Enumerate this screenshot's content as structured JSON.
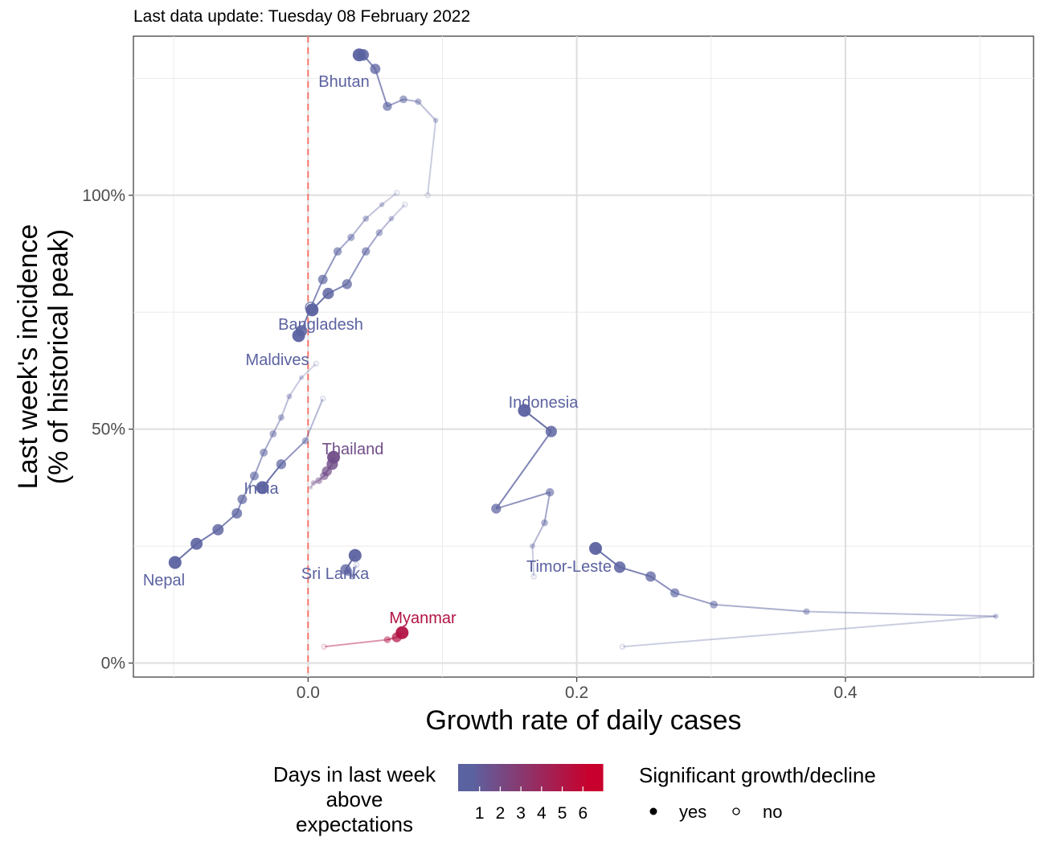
{
  "subtitle": "Last data update: Tuesday 08 February 2022",
  "chart_data": {
    "type": "scatter",
    "title": "",
    "xlabel": "Growth rate of daily cases",
    "ylabel": "Last week's incidence\n(% of historical peak)",
    "xlim": [
      -0.13,
      0.54
    ],
    "ylim": [
      -3,
      134
    ],
    "x_ticks": [
      0.0,
      0.2,
      0.4
    ],
    "x_tick_labels": [
      "0.0",
      "0.2",
      "0.4"
    ],
    "y_ticks": [
      0,
      50,
      100
    ],
    "y_tick_labels": [
      "0%",
      "50%",
      "100%"
    ],
    "reference_line": {
      "x": 0,
      "color": "#f8766d",
      "style": "dashed"
    },
    "colors": {
      "low": "#5b62a0",
      "high": "#c8002d"
    },
    "series": [
      {
        "name": "Bhutan",
        "days_above": 1,
        "points": [
          [
            0.089,
            100
          ],
          [
            0.095,
            116
          ],
          [
            0.082,
            120
          ],
          [
            0.071,
            120.5
          ],
          [
            0.059,
            119
          ],
          [
            0.05,
            127
          ],
          [
            0.041,
            130
          ],
          [
            0.038,
            130
          ]
        ],
        "significant": [
          false,
          true,
          true,
          true,
          true,
          true,
          true,
          true
        ],
        "label": "Bhutan"
      },
      {
        "name": "Bangladesh",
        "days_above": 1,
        "points": [
          [
            0.072,
            98
          ],
          [
            0.062,
            95
          ],
          [
            0.053,
            92
          ],
          [
            0.043,
            88
          ],
          [
            0.029,
            81
          ],
          [
            0.015,
            79
          ],
          [
            0.003,
            75.5
          ]
        ],
        "significant": [
          false,
          true,
          true,
          true,
          true,
          true,
          true
        ],
        "label": "Bangladesh"
      },
      {
        "name": "Maldives",
        "days_above": 1,
        "points": [
          [
            0.066,
            100.5
          ],
          [
            0.055,
            98
          ],
          [
            0.043,
            95
          ],
          [
            0.032,
            91
          ],
          [
            0.022,
            88
          ],
          [
            0.011,
            82
          ],
          [
            0.002,
            76
          ],
          [
            -0.005,
            71
          ],
          [
            -0.007,
            70
          ]
        ],
        "significant": [
          false,
          true,
          true,
          true,
          true,
          true,
          false,
          true,
          true
        ],
        "label": "Maldives"
      },
      {
        "name": "India",
        "days_above": 1,
        "points": [
          [
            0.006,
            64
          ],
          [
            -0.005,
            61
          ],
          [
            -0.014,
            57
          ],
          [
            -0.02,
            52.5
          ],
          [
            -0.026,
            49
          ],
          [
            -0.033,
            45
          ],
          [
            -0.04,
            40
          ],
          [
            -0.049,
            35
          ],
          [
            -0.053,
            32
          ],
          [
            -0.067,
            28.5
          ],
          [
            -0.083,
            25.5
          ],
          [
            -0.099,
            21.5
          ]
        ],
        "significant": [
          false,
          true,
          true,
          true,
          true,
          true,
          true,
          true,
          true,
          true,
          true,
          true
        ],
        "label": "India"
      },
      {
        "name": "Nepal",
        "days_above": 1,
        "points": [
          [
            0.011,
            56.5
          ],
          [
            -0.002,
            47.5
          ],
          [
            -0.02,
            42.5
          ],
          [
            -0.034,
            37.5
          ]
        ],
        "significant": [
          false,
          true,
          true,
          true
        ],
        "label": "Nepal"
      },
      {
        "name": "Thailand",
        "days_above": 2,
        "points": [
          [
            0.002,
            37.5
          ],
          [
            0.004,
            38.5
          ],
          [
            0.008,
            39
          ],
          [
            0.012,
            40
          ],
          [
            0.014,
            41
          ],
          [
            0.018,
            42.5
          ],
          [
            0.019,
            44
          ]
        ],
        "significant": [
          true,
          true,
          true,
          true,
          true,
          true,
          true
        ],
        "label": "Thailand"
      },
      {
        "name": "Sri Lanka",
        "days_above": 1,
        "points": [
          [
            0.036,
            21
          ],
          [
            0.033,
            18.5
          ],
          [
            0.03,
            19.5
          ],
          [
            0.028,
            20
          ],
          [
            0.035,
            23
          ]
        ],
        "significant": [
          false,
          true,
          true,
          true,
          true
        ],
        "label": "Sri Lanka"
      },
      {
        "name": "Indonesia",
        "days_above": 1,
        "points": [
          [
            0.168,
            18.5
          ],
          [
            0.167,
            25
          ],
          [
            0.176,
            30
          ],
          [
            0.18,
            36.5
          ],
          [
            0.14,
            33
          ],
          [
            0.181,
            49.5
          ],
          [
            0.161,
            54
          ]
        ],
        "significant": [
          false,
          true,
          true,
          true,
          true,
          true,
          true
        ],
        "label": "Indonesia"
      },
      {
        "name": "Timor-Leste",
        "days_above": 1,
        "points": [
          [
            0.234,
            3.5
          ],
          [
            0.512,
            10
          ],
          [
            0.371,
            11
          ],
          [
            0.302,
            12.5
          ],
          [
            0.273,
            15
          ],
          [
            0.255,
            18.5
          ],
          [
            0.232,
            20.5
          ],
          [
            0.214,
            24.5
          ]
        ],
        "significant": [
          false,
          true,
          true,
          true,
          true,
          true,
          true,
          true
        ],
        "label": "Timor-Leste"
      },
      {
        "name": "Myanmar",
        "days_above": 5,
        "points": [
          [
            0.012,
            3.5
          ],
          [
            0.059,
            5
          ],
          [
            0.066,
            5.5
          ],
          [
            0.07,
            6.5
          ]
        ],
        "significant": [
          false,
          true,
          true,
          true
        ],
        "label": "Myanmar"
      }
    ],
    "legend": {
      "color_title": "Days in last week\nabove\nexpectations",
      "color_ticks": [
        "1",
        "2",
        "3",
        "4",
        "5",
        "6"
      ],
      "shape_title": "Significant growth/decline",
      "shape_items": [
        "yes",
        "no"
      ]
    }
  }
}
